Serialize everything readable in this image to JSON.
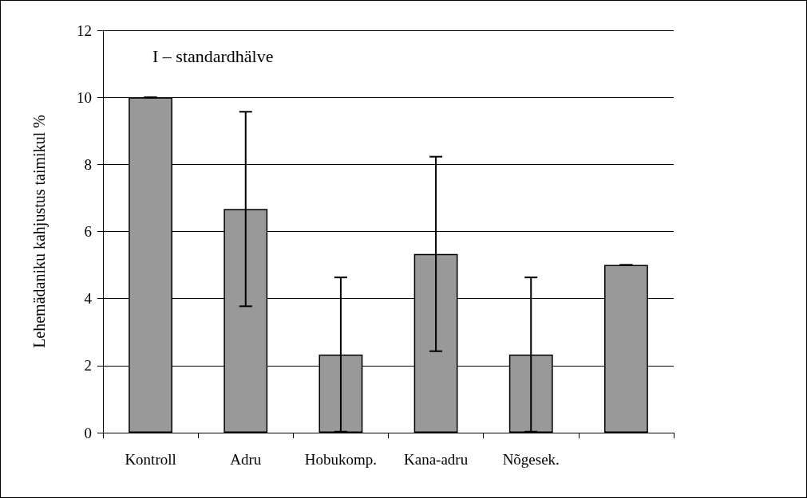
{
  "chart_data": {
    "type": "bar",
    "ylabel": "Lehemädaniku kahjustus taimikul %",
    "annotations": [
      "I – standardhälve"
    ],
    "categories": [
      "Kontroll",
      "Adru",
      "Hobukomp.",
      "Kana-adru",
      "Nõgesek.",
      null
    ],
    "values": [
      10,
      6.67,
      2.33,
      5.33,
      2.33,
      5
    ],
    "errors": [
      0,
      2.9,
      2.3,
      2.9,
      2.3,
      0
    ],
    "color": "#999999",
    "ylim": [
      0,
      12
    ],
    "yticks": [
      0,
      2,
      4,
      6,
      8,
      10,
      12
    ],
    "grid": "y"
  }
}
